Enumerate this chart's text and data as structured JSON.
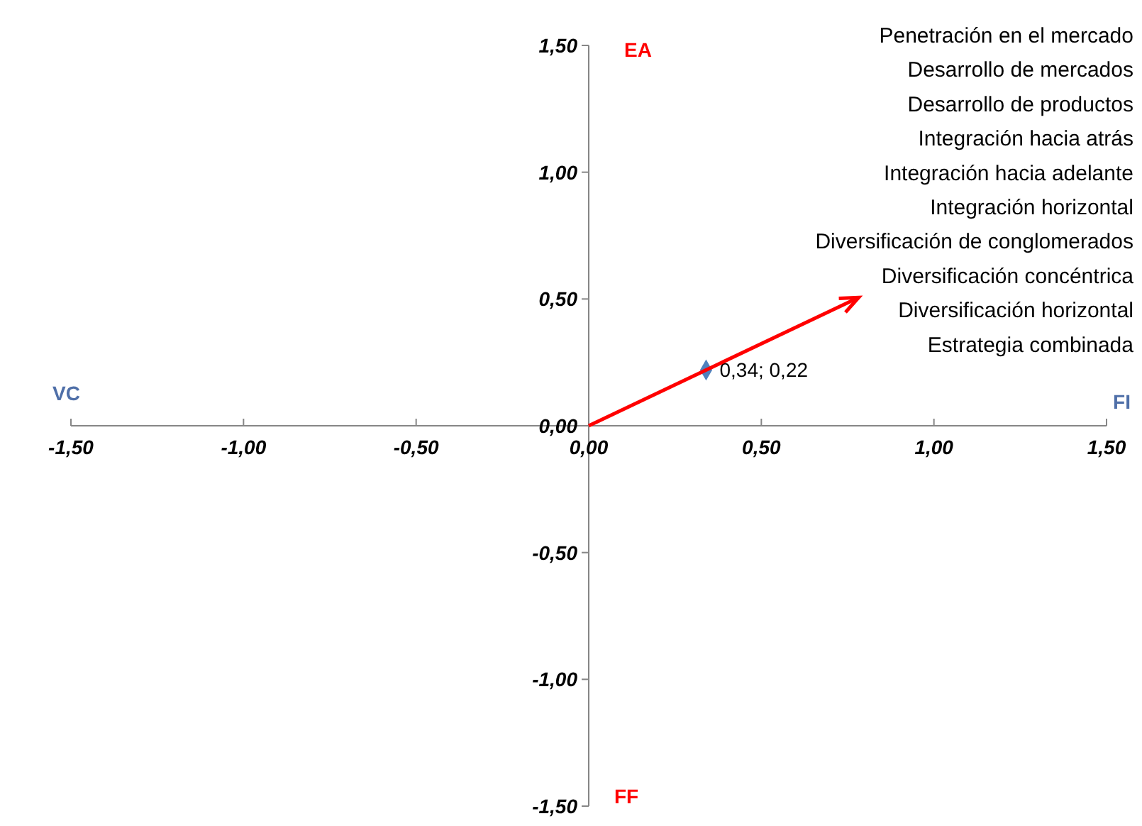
{
  "chart_data": {
    "type": "scatter",
    "x": [
      0.34
    ],
    "values": [
      0.22
    ],
    "color": "#4f81bd",
    "marker": "diamond",
    "value_labels": [
      "0,34; 0,22"
    ],
    "xlim": [
      -1.5,
      1.5
    ],
    "ylim": [
      -1.5,
      1.5
    ],
    "xticks": [
      {
        "value": -1.5,
        "label": "-1,50"
      },
      {
        "value": -1,
        "label": "-1,00"
      },
      {
        "value": -0.5,
        "label": "-0,50"
      },
      {
        "value": 0,
        "label": "0,00"
      },
      {
        "value": 0.5,
        "label": "0,50"
      },
      {
        "value": 1,
        "label": "1,00"
      },
      {
        "value": 1.5,
        "label": "1,50"
      }
    ],
    "yticks": [
      {
        "value": -1.5,
        "label": "-1,50"
      },
      {
        "value": -1,
        "label": "-1,00"
      },
      {
        "value": -0.5,
        "label": "-0,50"
      },
      {
        "value": 0,
        "label": "0,00"
      },
      {
        "value": 0.5,
        "label": "0,50"
      },
      {
        "value": 1,
        "label": "1,00"
      },
      {
        "value": 1.5,
        "label": "1,50"
      }
    ],
    "annotations": [
      "EA",
      "FF",
      "VC",
      "FI",
      "Penetración en el mercado",
      "Desarrollo de mercados",
      "Desarrollo de productos",
      "Integración hacia atrás",
      "Integración hacia adelante",
      "Integración horizontal",
      "Diversificación de conglomerados",
      "Diversificación concéntrica",
      "Diversificación horizontal",
      "Estrategia combinada"
    ]
  }
}
